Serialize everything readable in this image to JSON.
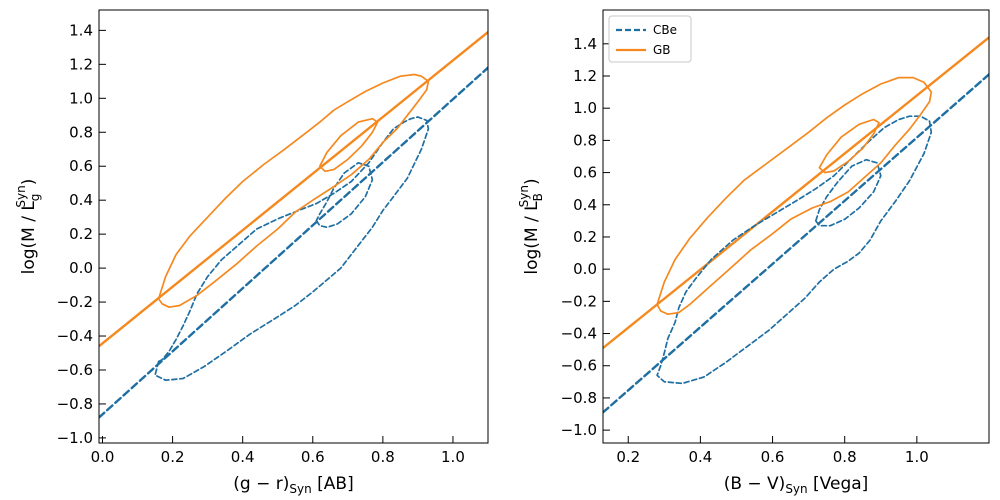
{
  "colors": {
    "cbe": "#1f6fa3",
    "gb": "#f5891f"
  },
  "chart_data": [
    {
      "type": "line",
      "id": "left",
      "xlabel": {
        "main": "(g − r)",
        "sub": "Syn",
        "tail": " [AB]"
      },
      "ylabel": {
        "pre": "log(M / L",
        "sub": "g",
        "sup": "Syn",
        "post": ")"
      },
      "xlim": [
        -0.01,
        1.1
      ],
      "ylim": [
        -1.03,
        1.52
      ],
      "xticks": [
        0.0,
        0.2,
        0.4,
        0.6,
        0.8,
        1.0
      ],
      "xtick_labels": [
        "0.0",
        "0.2",
        "0.4",
        "0.6",
        "0.8",
        "1.0"
      ],
      "yticks": [
        -1.0,
        -0.8,
        -0.6,
        -0.4,
        -0.2,
        0.0,
        0.2,
        0.4,
        0.6,
        0.8,
        1.0,
        1.2,
        1.4
      ],
      "ytick_labels": [
        "−1.0",
        "−0.8",
        "−0.6",
        "−0.4",
        "−0.2",
        "0.0",
        "0.2",
        "0.4",
        "0.6",
        "0.8",
        "1.0",
        "1.2",
        "1.4"
      ],
      "legend": null,
      "series": [
        {
          "name": "CBe",
          "kind": "line",
          "style": "dashed",
          "x": [
            -0.01,
            1.1
          ],
          "y": [
            -0.88,
            1.18
          ]
        },
        {
          "name": "GB",
          "kind": "line",
          "style": "solid",
          "x": [
            -0.01,
            1.1
          ],
          "y": [
            -0.46,
            1.39
          ]
        },
        {
          "name": "CBe",
          "kind": "contour",
          "style": "dashed",
          "x": [
            0.16,
            0.15,
            0.18,
            0.23,
            0.29,
            0.36,
            0.42,
            0.49,
            0.55,
            0.6,
            0.64,
            0.68,
            0.71,
            0.74,
            0.77,
            0.8,
            0.83,
            0.87,
            0.91,
            0.93,
            0.925,
            0.9,
            0.88,
            0.86,
            0.83,
            0.8,
            0.76,
            0.71,
            0.66,
            0.61,
            0.56,
            0.5,
            0.44,
            0.39,
            0.34,
            0.3,
            0.27,
            0.25,
            0.23,
            0.21,
            0.19,
            0.17,
            0.16
          ],
          "y": [
            -0.55,
            -0.63,
            -0.66,
            -0.65,
            -0.58,
            -0.48,
            -0.39,
            -0.3,
            -0.22,
            -0.14,
            -0.07,
            0.0,
            0.08,
            0.16,
            0.24,
            0.34,
            0.42,
            0.53,
            0.7,
            0.82,
            0.87,
            0.89,
            0.88,
            0.86,
            0.82,
            0.74,
            0.62,
            0.51,
            0.44,
            0.38,
            0.34,
            0.29,
            0.23,
            0.14,
            0.05,
            -0.05,
            -0.15,
            -0.25,
            -0.34,
            -0.42,
            -0.49,
            -0.54,
            -0.55
          ]
        },
        {
          "name": "CBe",
          "kind": "contour",
          "style": "dashed",
          "x": [
            0.61,
            0.62,
            0.64,
            0.67,
            0.71,
            0.75,
            0.77,
            0.76,
            0.73,
            0.69,
            0.66,
            0.64,
            0.62,
            0.61
          ],
          "y": [
            0.28,
            0.25,
            0.24,
            0.26,
            0.32,
            0.42,
            0.52,
            0.6,
            0.62,
            0.56,
            0.47,
            0.39,
            0.32,
            0.28
          ]
        },
        {
          "name": "GB",
          "kind": "contour",
          "style": "solid",
          "x": [
            0.16,
            0.18,
            0.21,
            0.25,
            0.3,
            0.35,
            0.4,
            0.46,
            0.52,
            0.57,
            0.62,
            0.66,
            0.7,
            0.75,
            0.8,
            0.85,
            0.89,
            0.91,
            0.93,
            0.925,
            0.9,
            0.87,
            0.84,
            0.8,
            0.76,
            0.71,
            0.66,
            0.6,
            0.55,
            0.5,
            0.44,
            0.38,
            0.32,
            0.27,
            0.22,
            0.19,
            0.17,
            0.16
          ],
          "y": [
            -0.18,
            -0.05,
            0.08,
            0.19,
            0.3,
            0.41,
            0.51,
            0.61,
            0.7,
            0.78,
            0.86,
            0.93,
            0.98,
            1.04,
            1.09,
            1.13,
            1.14,
            1.13,
            1.1,
            1.05,
            0.98,
            0.9,
            0.82,
            0.74,
            0.64,
            0.55,
            0.48,
            0.4,
            0.33,
            0.23,
            0.13,
            0.02,
            -0.08,
            -0.16,
            -0.22,
            -0.23,
            -0.21,
            -0.18
          ]
        },
        {
          "name": "GB",
          "kind": "contour",
          "style": "solid",
          "x": [
            0.62,
            0.635,
            0.66,
            0.7,
            0.74,
            0.77,
            0.785,
            0.77,
            0.73,
            0.68,
            0.64,
            0.62
          ],
          "y": [
            0.6,
            0.57,
            0.58,
            0.64,
            0.72,
            0.8,
            0.86,
            0.88,
            0.86,
            0.78,
            0.68,
            0.6
          ]
        }
      ]
    },
    {
      "type": "line",
      "id": "right",
      "xlabel": {
        "main": "(B − V)",
        "sub": "Syn",
        "tail": " [Vega]"
      },
      "ylabel": {
        "pre": "log(M / L",
        "sub": "B",
        "sup": "Syn",
        "post": ")"
      },
      "xlim": [
        0.13,
        1.2
      ],
      "ylim": [
        -1.08,
        1.61
      ],
      "xticks": [
        0.2,
        0.4,
        0.6,
        0.8,
        1.0
      ],
      "xtick_labels": [
        "0.2",
        "0.4",
        "0.6",
        "0.8",
        "1.0"
      ],
      "yticks": [
        -1.0,
        -0.8,
        -0.6,
        -0.4,
        -0.2,
        0.0,
        0.2,
        0.4,
        0.6,
        0.8,
        1.0,
        1.2,
        1.4
      ],
      "ytick_labels": [
        "−1.0",
        "−0.8",
        "−0.6",
        "−0.4",
        "−0.2",
        "0.0",
        "0.2",
        "0.4",
        "0.6",
        "0.8",
        "1.0",
        "1.2",
        "1.4"
      ],
      "legend": {
        "position": "top-left",
        "entries": [
          "CBe",
          "GB"
        ]
      },
      "series": [
        {
          "name": "CBe",
          "kind": "line",
          "style": "dashed",
          "x": [
            0.13,
            1.2
          ],
          "y": [
            -0.89,
            1.21
          ]
        },
        {
          "name": "GB",
          "kind": "line",
          "style": "solid",
          "x": [
            0.13,
            1.2
          ],
          "y": [
            -0.49,
            1.44
          ]
        },
        {
          "name": "CBe",
          "kind": "contour",
          "style": "dashed",
          "x": [
            0.29,
            0.28,
            0.3,
            0.35,
            0.41,
            0.47,
            0.53,
            0.59,
            0.64,
            0.69,
            0.73,
            0.77,
            0.81,
            0.84,
            0.87,
            0.9,
            0.94,
            0.98,
            1.02,
            1.04,
            1.035,
            1.01,
            0.98,
            0.95,
            0.91,
            0.87,
            0.82,
            0.77,
            0.72,
            0.67,
            0.61,
            0.55,
            0.49,
            0.43,
            0.39,
            0.36,
            0.34,
            0.33,
            0.31,
            0.3,
            0.29
          ],
          "y": [
            -0.6,
            -0.66,
            -0.7,
            -0.71,
            -0.67,
            -0.58,
            -0.48,
            -0.38,
            -0.28,
            -0.18,
            -0.08,
            0.0,
            0.05,
            0.1,
            0.18,
            0.3,
            0.42,
            0.55,
            0.72,
            0.85,
            0.92,
            0.95,
            0.95,
            0.93,
            0.88,
            0.8,
            0.69,
            0.58,
            0.5,
            0.43,
            0.35,
            0.27,
            0.18,
            0.06,
            -0.05,
            -0.14,
            -0.24,
            -0.33,
            -0.43,
            -0.52,
            -0.6
          ]
        },
        {
          "name": "CBe",
          "kind": "contour",
          "style": "dashed",
          "x": [
            0.72,
            0.73,
            0.76,
            0.8,
            0.84,
            0.88,
            0.9,
            0.89,
            0.86,
            0.82,
            0.78,
            0.75,
            0.73,
            0.72
          ],
          "y": [
            0.3,
            0.27,
            0.27,
            0.31,
            0.38,
            0.48,
            0.58,
            0.66,
            0.68,
            0.64,
            0.54,
            0.45,
            0.37,
            0.3
          ]
        },
        {
          "name": "GB",
          "kind": "contour",
          "style": "solid",
          "x": [
            0.28,
            0.3,
            0.33,
            0.37,
            0.42,
            0.47,
            0.52,
            0.58,
            0.64,
            0.7,
            0.75,
            0.8,
            0.85,
            0.9,
            0.95,
            0.99,
            1.02,
            1.04,
            1.035,
            1.01,
            0.98,
            0.94,
            0.9,
            0.86,
            0.81,
            0.76,
            0.71,
            0.65,
            0.6,
            0.54,
            0.48,
            0.42,
            0.37,
            0.34,
            0.31,
            0.29,
            0.28
          ],
          "y": [
            -0.22,
            -0.08,
            0.06,
            0.19,
            0.32,
            0.44,
            0.55,
            0.65,
            0.75,
            0.85,
            0.94,
            1.02,
            1.09,
            1.15,
            1.19,
            1.19,
            1.16,
            1.1,
            1.04,
            0.96,
            0.87,
            0.77,
            0.66,
            0.58,
            0.48,
            0.42,
            0.38,
            0.31,
            0.22,
            0.12,
            0.0,
            -0.12,
            -0.22,
            -0.27,
            -0.28,
            -0.26,
            -0.22
          ]
        },
        {
          "name": "GB",
          "kind": "contour",
          "style": "solid",
          "x": [
            0.73,
            0.745,
            0.77,
            0.81,
            0.85,
            0.88,
            0.895,
            0.88,
            0.84,
            0.79,
            0.75,
            0.73
          ],
          "y": [
            0.63,
            0.6,
            0.61,
            0.67,
            0.75,
            0.84,
            0.91,
            0.93,
            0.9,
            0.82,
            0.71,
            0.63
          ]
        }
      ]
    }
  ]
}
